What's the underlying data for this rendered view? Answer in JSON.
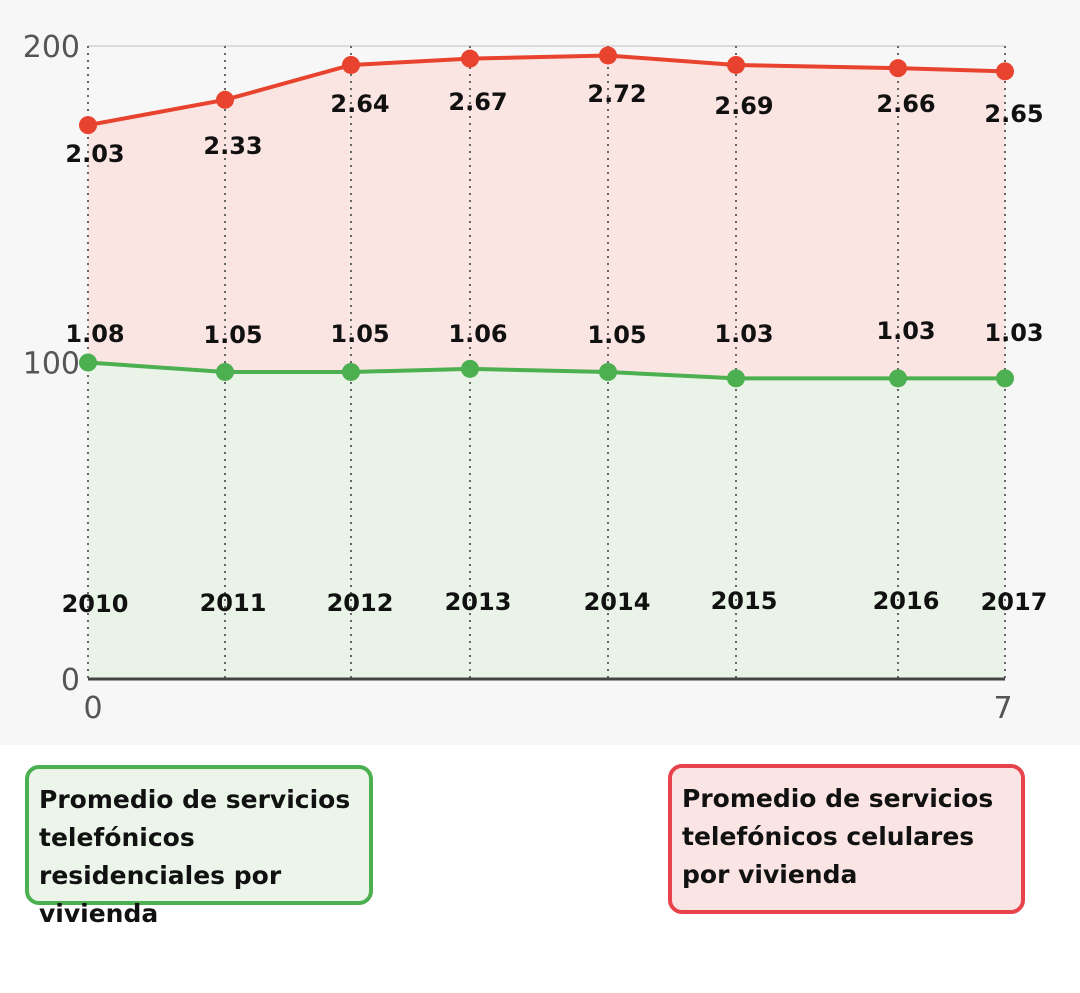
{
  "chart_data": {
    "type": "area",
    "xlim": [
      0,
      7
    ],
    "ylim": [
      0,
      200
    ],
    "x_ticks": [
      "0",
      "7"
    ],
    "y_ticks": [
      "0",
      "100",
      "200"
    ],
    "categories": [
      "2010",
      "2011",
      "2012",
      "2013",
      "2014",
      "2015",
      "2016",
      "2017"
    ],
    "series": [
      {
        "name": "Promedio de servicios telefónicos residenciales por vivienda",
        "color": "#4caf50",
        "fill": "#e9f3e7",
        "values": [
          100,
          97,
          97,
          98,
          97,
          95,
          95,
          95
        ],
        "labels": [
          "1.08",
          "1.05",
          "1.05",
          "1.06",
          "1.05",
          "1.03",
          "1.03",
          "1.03"
        ]
      },
      {
        "name": "Promedio de servicios telefónicos celulares por vivienda",
        "color": "#e8432e",
        "fill": "#fbe5e3",
        "values": [
          175,
          183,
          194,
          196,
          197,
          194,
          193,
          192
        ],
        "labels": [
          "2.03",
          "2.33",
          "2.64",
          "2.67",
          "2.72",
          "2.69",
          "2.66",
          "2.65"
        ]
      }
    ],
    "grid": true,
    "legend_position": "bottom"
  },
  "legend": {
    "green": "Promedio de servicios telefónicos residenciales por vivienda",
    "red": "Promedio de servicios telefónicos celulares por vivienda"
  }
}
